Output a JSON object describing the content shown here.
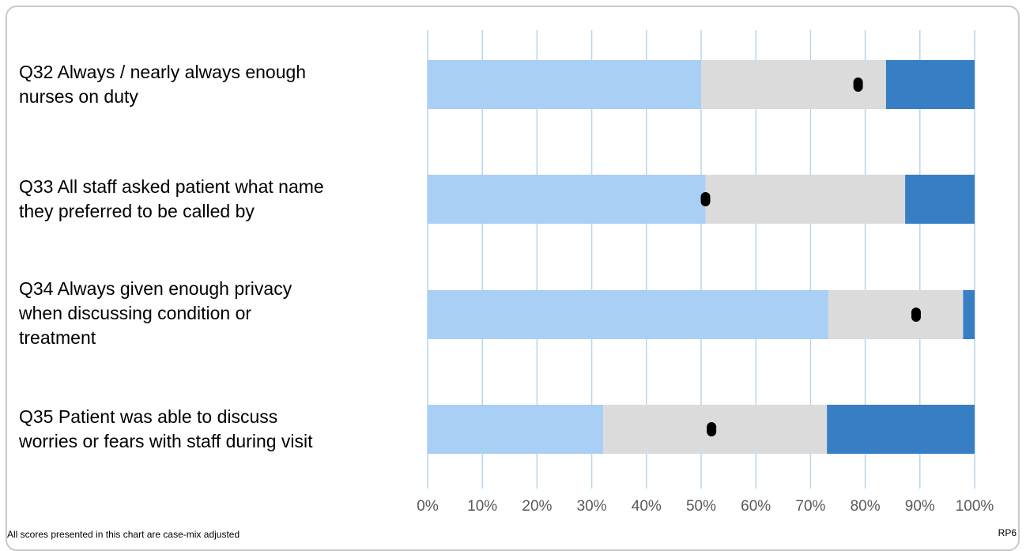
{
  "chart_data": {
    "type": "bar",
    "stacked": true,
    "orientation": "horizontal",
    "categories": [
      "Q32 Always / nearly always enough\nnurses on duty",
      "Q33 All staff asked patient what name\nthey preferred to be called by",
      "Q34 Always given enough privacy\nwhen discussing condition or\ntreatment",
      "Q35 Patient was able to discuss\nworries or fears with staff during visit"
    ],
    "series": [
      {
        "name": "",
        "color": "#a9cff4",
        "values": [
          50,
          50.8,
          73.3,
          32.1
        ]
      },
      {
        "name": "",
        "color": "#dcdbdb",
        "values": [
          33.8,
          36.5,
          24.6,
          40.9
        ]
      },
      {
        "name": "",
        "color": "#377ec4",
        "values": [
          16.2,
          12.7,
          2.1,
          27
        ]
      }
    ],
    "markers": [
      78.7,
      50.8,
      89.3,
      51.9
    ],
    "marker_color": "#000000",
    "xlim": [
      0,
      100
    ],
    "xticks": [
      "0%",
      "10%",
      "20%",
      "30%",
      "40%",
      "50%",
      "60%",
      "70%",
      "80%",
      "90%",
      "100%"
    ],
    "grid": true,
    "gridline_color": "#b7d4ed",
    "legend": "none",
    "title": "",
    "xlabel": "",
    "ylabel": ""
  },
  "footnote": "All scores presented in this chart are case-mix adjusted",
  "chart_code": "RP6"
}
